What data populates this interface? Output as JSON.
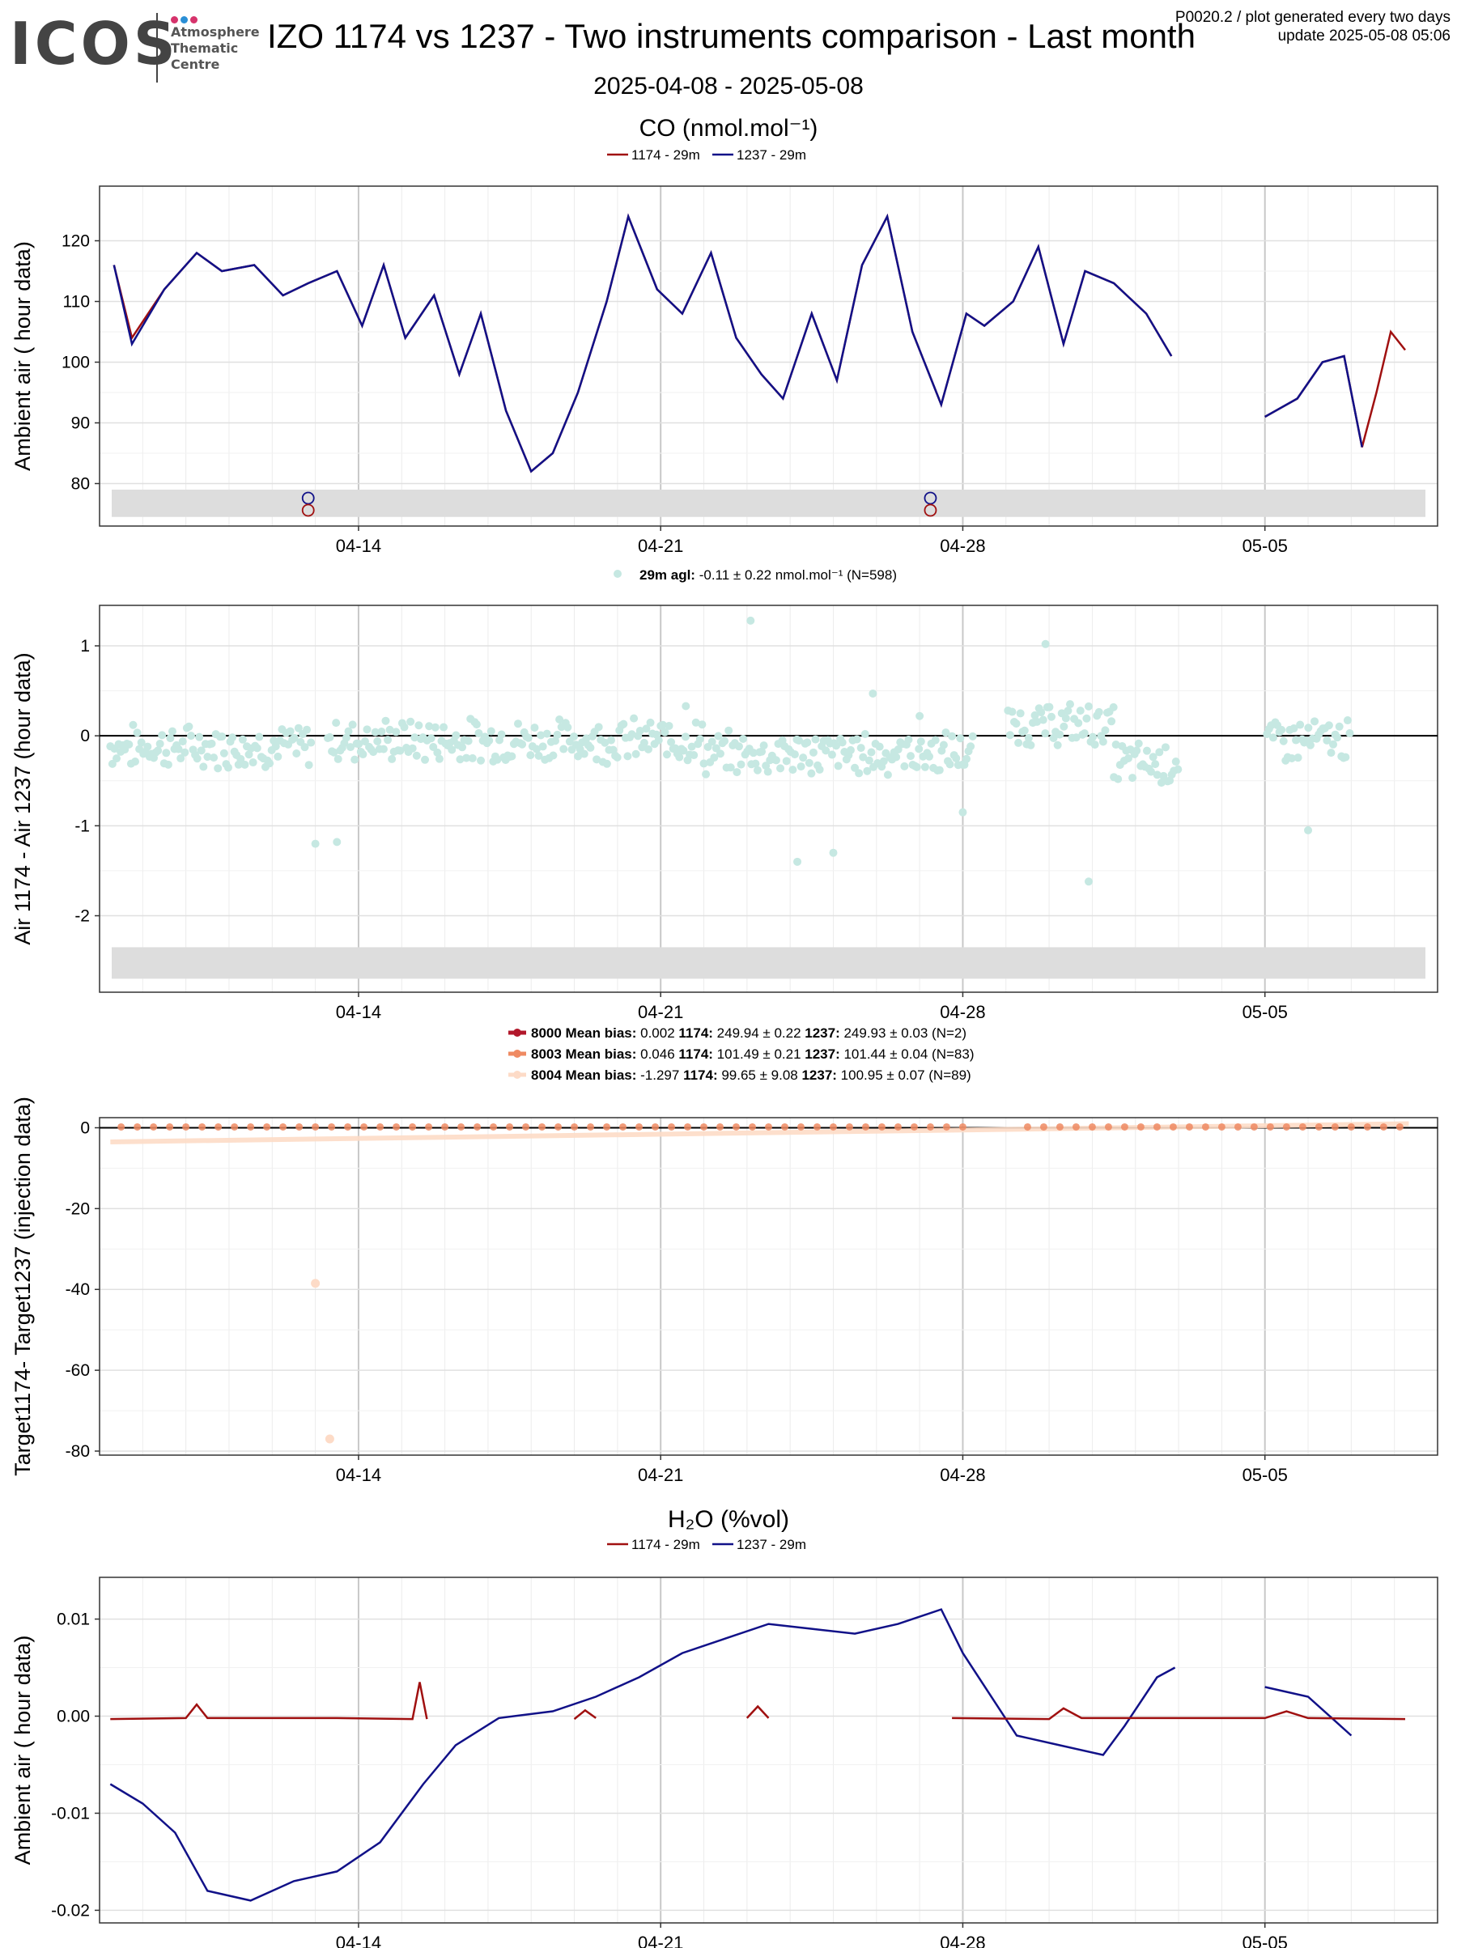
{
  "header": {
    "logo_text": "ICOS",
    "logo_lines": [
      "Atmosphere",
      "Thematic",
      "Centre"
    ],
    "title": "IZO 1174 vs 1237 - Two instruments comparison - Last month",
    "meta_line1": "P0020.2 / plot generated every two days",
    "meta_line2": "update  2025-05-08 05:06",
    "date_range": "2025-04-08 - 2025-05-08"
  },
  "colors": {
    "series_1174": "#a01010",
    "series_1237": "#111188",
    "diff_points": "#c6e8e2",
    "t8000": "#b2182b",
    "t8003": "#ef8a62",
    "t8004": "#fddbc7",
    "band": "#dddddd",
    "logo_dots": [
      "#d6336c",
      "#2a8fd6",
      "#d6336c"
    ]
  },
  "x_axis": {
    "start": "2025-04-08",
    "end": "2025-05-08",
    "ticks": [
      {
        "date": "2025-04-14",
        "label": "04-14"
      },
      {
        "date": "2025-04-21",
        "label": "04-21"
      },
      {
        "date": "2025-04-28",
        "label": "04-28"
      },
      {
        "date": "2025-05-05",
        "label": "05-05"
      }
    ]
  },
  "chart_data": [
    {
      "type": "line",
      "title": "CO (nmol.mol⁻¹)",
      "ylabel": "Ambient air ( hour data)",
      "ylim": [
        73,
        129
      ],
      "yticks": [
        80,
        90,
        100,
        110,
        120
      ],
      "legend": [
        "1174 - 29m",
        "1237 - 29m"
      ],
      "series": [
        {
          "name": "1174 - 29m",
          "x": [
            "2025-04-08 08:00",
            "2025-04-08 18:00",
            "2025-04-09 12:00",
            "2025-04-10 06:00",
            "2025-04-10 20:00",
            "2025-04-11 14:00",
            "2025-04-12 06:00",
            "2025-04-12 20:00",
            "2025-04-13 12:00",
            "2025-04-14 02:00",
            "2025-04-14 14:00",
            "2025-04-15 02:00",
            "2025-04-15 18:00",
            "2025-04-16 08:00",
            "2025-04-16 20:00",
            "2025-04-17 10:00",
            "2025-04-18 00:00",
            "2025-04-18 12:00",
            "2025-04-19 02:00",
            "2025-04-19 18:00",
            "2025-04-20 06:00",
            "2025-04-20 22:00",
            "2025-04-21 12:00",
            "2025-04-22 04:00",
            "2025-04-22 18:00",
            "2025-04-23 08:00",
            "2025-04-23 20:00",
            "2025-04-24 12:00",
            "2025-04-25 02:00",
            "2025-04-25 16:00",
            "2025-04-26 06:00",
            "2025-04-26 20:00",
            "2025-04-27 12:00",
            "2025-04-28 02:00",
            "2025-04-28 12:00",
            "2025-04-29 04:00",
            "2025-04-29 18:00",
            "2025-04-30 08:00",
            "2025-04-30 20:00",
            "2025-05-01 12:00",
            "2025-05-02 06:00",
            "2025-05-02 20:00",
            "2025-05-05 00:00",
            "2025-05-05 18:00",
            "2025-05-06 08:00",
            "2025-05-06 20:00",
            "2025-05-07 06:00",
            "2025-05-07 14:00",
            "2025-05-07 22:00",
            "2025-05-08 06:00"
          ],
          "y": [
            116,
            104,
            112,
            118,
            115,
            116,
            111,
            113,
            115,
            106,
            116,
            104,
            111,
            98,
            108,
            92,
            82,
            85,
            95,
            110,
            124,
            112,
            108,
            118,
            104,
            98,
            94,
            108,
            97,
            116,
            124,
            105,
            93,
            108,
            106,
            110,
            119,
            103,
            115,
            113,
            108,
            101,
            91,
            94,
            100,
            101,
            86,
            95,
            105,
            102
          ]
        },
        {
          "name": "1237 - 29m",
          "x": [
            "2025-04-08 08:00",
            "2025-04-08 18:00",
            "2025-04-09 12:00",
            "2025-04-10 06:00",
            "2025-04-10 20:00",
            "2025-04-11 14:00",
            "2025-04-12 06:00",
            "2025-04-12 20:00",
            "2025-04-13 12:00",
            "2025-04-14 02:00",
            "2025-04-14 14:00",
            "2025-04-15 02:00",
            "2025-04-15 18:00",
            "2025-04-16 08:00",
            "2025-04-16 20:00",
            "2025-04-17 10:00",
            "2025-04-18 00:00",
            "2025-04-18 12:00",
            "2025-04-19 02:00",
            "2025-04-19 18:00",
            "2025-04-20 06:00",
            "2025-04-20 22:00",
            "2025-04-21 12:00",
            "2025-04-22 04:00",
            "2025-04-22 18:00",
            "2025-04-23 08:00",
            "2025-04-23 20:00",
            "2025-04-24 12:00",
            "2025-04-25 02:00",
            "2025-04-25 16:00",
            "2025-04-26 06:00",
            "2025-04-26 20:00",
            "2025-04-27 12:00",
            "2025-04-28 02:00",
            "2025-04-28 12:00",
            "2025-04-29 04:00",
            "2025-04-29 18:00",
            "2025-04-30 08:00",
            "2025-04-30 20:00",
            "2025-05-01 12:00",
            "2025-05-02 06:00",
            "2025-05-02 20:00",
            "2025-05-05 00:00",
            "2025-05-05 18:00",
            "2025-05-06 08:00",
            "2025-05-06 20:00",
            "2025-05-07 06:00"
          ],
          "y": [
            116,
            103,
            112,
            118,
            115,
            116,
            111,
            113,
            115,
            106,
            116,
            104,
            111,
            98,
            108,
            92,
            82,
            85,
            95,
            110,
            124,
            112,
            108,
            118,
            104,
            98,
            94,
            108,
            97,
            116,
            124,
            105,
            93,
            108,
            106,
            110,
            119,
            103,
            115,
            113,
            108,
            101,
            91,
            94,
            100,
            101,
            86
          ]
        }
      ],
      "markers": [
        {
          "x": "2025-04-12 20:00",
          "y": 77.6,
          "series": "1237 - 29m"
        },
        {
          "x": "2025-04-12 20:00",
          "y": 75.6,
          "series": "1174 - 29m"
        },
        {
          "x": "2025-04-27 06:00",
          "y": 77.6,
          "series": "1237 - 29m"
        },
        {
          "x": "2025-04-27 06:00",
          "y": 75.6,
          "series": "1174 - 29m"
        }
      ],
      "band": [
        74.5,
        79
      ]
    },
    {
      "type": "scatter",
      "ylabel": "Air 1174 - Air 1237 (hour data)",
      "ylim": [
        -2.85,
        1.45
      ],
      "yticks": [
        1,
        0,
        -1,
        -2
      ],
      "legend_label": "29m agl:",
      "legend_text": "-0.11 ± 0.22 nmol.mol⁻¹",
      "legend_n": "(N=598)",
      "band": [
        -2.7,
        -2.35
      ],
      "outliers": [
        {
          "x": "2025-04-13 00:00",
          "y": -1.2
        },
        {
          "x": "2025-04-13 12:00",
          "y": -1.18
        },
        {
          "x": "2025-04-23 02:00",
          "y": 1.28
        },
        {
          "x": "2025-04-24 04:00",
          "y": -1.4
        },
        {
          "x": "2025-04-25 00:00",
          "y": -1.3
        },
        {
          "x": "2025-04-25 22:00",
          "y": 0.47
        },
        {
          "x": "2025-04-28 00:00",
          "y": -0.85
        },
        {
          "x": "2025-04-29 22:00",
          "y": 1.02
        },
        {
          "x": "2025-04-30 22:00",
          "y": -1.62
        },
        {
          "x": "2025-05-06 00:00",
          "y": -1.05
        },
        {
          "x": "2025-04-21 14:00",
          "y": 0.33
        },
        {
          "x": "2025-04-27 00:00",
          "y": 0.22
        }
      ],
      "gaps": [
        [
          "2025-04-12 22:00",
          "2025-04-13 06:00"
        ],
        [
          "2025-04-28 08:00",
          "2025-04-29 00:00"
        ],
        [
          "2025-05-03 02:00",
          "2025-05-05 00:00"
        ],
        [
          "2025-05-07 00:00",
          "2025-05-08 08:00"
        ]
      ],
      "segments": [
        {
          "from": "2025-04-08 06:00",
          "to": "2025-04-13 00:00",
          "mean": -0.12
        },
        {
          "from": "2025-04-13 00:00",
          "to": "2025-04-22 00:00",
          "mean": -0.05
        },
        {
          "from": "2025-04-22 00:00",
          "to": "2025-04-28 06:00",
          "mean": -0.2
        },
        {
          "from": "2025-04-29 00:00",
          "to": "2025-05-01 12:00",
          "mean": 0.12
        },
        {
          "from": "2025-05-01 12:00",
          "to": "2025-05-03 00:00",
          "mean": -0.3
        },
        {
          "from": "2025-05-05 00:00",
          "to": "2025-05-07 00:00",
          "mean": -0.05
        }
      ]
    },
    {
      "type": "scatter",
      "ylabel": "Target1174- Target1237 (injection data)",
      "ylim": [
        -81,
        2.5
      ],
      "yticks": [
        0,
        -20,
        -40,
        -60,
        -80
      ],
      "series": [
        {
          "name": "8000",
          "mean_bias": "0.002",
          "v1174": "249.94 ± 0.22",
          "v1237": "249.93 ± 0.03",
          "n": "(N=2)"
        },
        {
          "name": "8003",
          "mean_bias": "0.046",
          "v1174": "101.49 ± 0.21",
          "v1237": "101.44 ± 0.04",
          "n": "(N=83)"
        },
        {
          "name": "8004",
          "mean_bias": "-1.297",
          "v1174": "99.65 ± 9.08",
          "v1237": "100.95 ± 0.07",
          "n": "(N=89)"
        }
      ],
      "legend_bias_label": "Mean bias:",
      "legend_1174_label": "1174:",
      "legend_1237_label": "1237:",
      "outliers": [
        {
          "x": "2025-04-13 00:00",
          "y": -38.5,
          "series": "8004"
        },
        {
          "x": "2025-04-13 08:00",
          "y": -77,
          "series": "8004"
        }
      ],
      "trend_8004": {
        "x": [
          "2025-04-08 06:00",
          "2025-05-08 08:00"
        ],
        "y": [
          -3.5,
          1.0
        ]
      }
    },
    {
      "type": "line",
      "title": "H₂O (%vol)",
      "ylabel": "Ambient air ( hour data)",
      "ylim": [
        -0.0213,
        0.0143
      ],
      "yticks": [
        0.01,
        0.0,
        -0.01,
        -0.02
      ],
      "ytick_labels": [
        "0.01",
        "0.00",
        "-0.01",
        "-0.02"
      ],
      "legend": [
        "1174 - 29m",
        "1237 - 29m"
      ],
      "series": [
        {
          "name": "1174 - 29m",
          "x": [
            "2025-04-08 06:00",
            "2025-04-10 00:00",
            "2025-04-10 06:00",
            "2025-04-10 12:00",
            "2025-04-12 20:00",
            "2025-04-13 12:00",
            "2025-04-15 06:00",
            "2025-04-15 10:00",
            "2025-04-15 14:00",
            "2025-04-19 00:00",
            "2025-04-19 06:00",
            "2025-04-19 12:00",
            "2025-04-23 00:00",
            "2025-04-23 06:00",
            "2025-04-23 12:00",
            "2025-04-27 18:00",
            "2025-04-30 00:00",
            "2025-04-30 08:00",
            "2025-04-30 18:00",
            "2025-05-02 20:00",
            "2025-05-05 00:00",
            "2025-05-05 12:00",
            "2025-05-06 00:00",
            "2025-05-08 06:00"
          ],
          "y": [
            -0.0003,
            -0.0002,
            0.0012,
            -0.0002,
            -0.0002,
            -0.0002,
            -0.0003,
            0.0035,
            -0.0003,
            -0.0003,
            0.0006,
            -0.0002,
            -0.0002,
            0.001,
            -0.0002,
            -0.0002,
            -0.0003,
            0.0008,
            -0.0002,
            -0.0002,
            -0.0002,
            0.0005,
            -0.0002,
            -0.0003
          ]
        },
        {
          "name": "1237 - 29m",
          "x": [
            "2025-04-08 06:00",
            "2025-04-09 00:00",
            "2025-04-09 18:00",
            "2025-04-10 12:00",
            "2025-04-11 12:00",
            "2025-04-12 12:00",
            "2025-04-13 12:00",
            "2025-04-14 12:00",
            "2025-04-15 12:00",
            "2025-04-16 06:00",
            "2025-04-17 06:00",
            "2025-04-18 12:00",
            "2025-04-19 12:00",
            "2025-04-20 12:00",
            "2025-04-21 12:00",
            "2025-04-22 12:00",
            "2025-04-23 12:00",
            "2025-04-24 12:00",
            "2025-04-25 12:00",
            "2025-04-26 12:00",
            "2025-04-27 12:00",
            "2025-04-28 00:00",
            "2025-04-29 06:00",
            "2025-04-30 06:00",
            "2025-05-01 06:00",
            "2025-05-01 18:00",
            "2025-05-02 12:00",
            "2025-05-02 22:00",
            "2025-05-05 00:00",
            "2025-05-06 00:00",
            "2025-05-07 00:00"
          ],
          "y": [
            -0.007,
            -0.009,
            -0.012,
            -0.018,
            -0.019,
            -0.017,
            -0.016,
            -0.013,
            -0.007,
            -0.003,
            -0.0002,
            0.0005,
            0.002,
            0.004,
            0.0065,
            0.008,
            0.0095,
            0.009,
            0.0085,
            0.0095,
            0.011,
            0.0065,
            -0.002,
            -0.003,
            -0.004,
            -0.001,
            0.004,
            0.005,
            0.003,
            0.002,
            -0.002
          ]
        }
      ]
    }
  ]
}
